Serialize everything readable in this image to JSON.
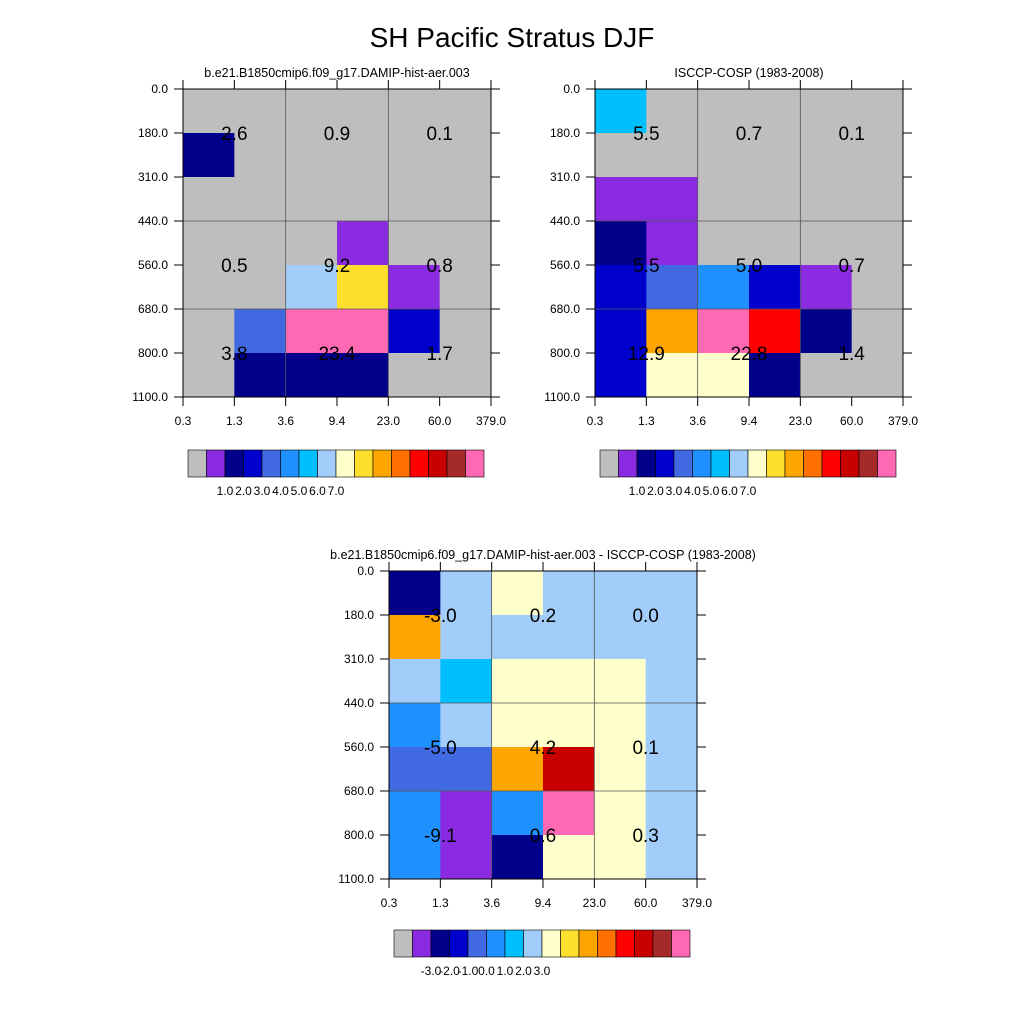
{
  "title": "SH Pacific Stratus DJF",
  "palette": {
    "gray": "#bebebe",
    "purple": "#8a2be2",
    "navy": "#00008b",
    "mblue": "#0000cd",
    "royal": "#4169e1",
    "dodger": "#1e90ff",
    "deepsky": "#00bfff",
    "lightblue": "#a2cdfa",
    "cream": "#ffffcc",
    "gold": "#ffdf2e",
    "orange": "#ffa500",
    "dorange": "#ff7000",
    "red": "#ff0000",
    "dred": "#c80000",
    "brown": "#a52a2a",
    "pink": "#ff69b4"
  },
  "chart_data": [
    {
      "type": "heatmap",
      "title": "b.e21.B1850cmip6.f09_g17.DAMIP-hist-aer.003",
      "x_ticks": [
        "0.3",
        "1.3",
        "3.6",
        "9.4",
        "23.0",
        "60.0",
        "379.0"
      ],
      "y_ticks": [
        "0.0",
        "180.0",
        "310.0",
        "440.0",
        "560.0",
        "680.0",
        "800.0",
        "1100.0"
      ],
      "cell_colors": [
        [
          "gray",
          "gray",
          "gray",
          "gray",
          "gray",
          "gray"
        ],
        [
          "navy",
          "gray",
          "gray",
          "gray",
          "gray",
          "gray"
        ],
        [
          "gray",
          "gray",
          "gray",
          "gray",
          "gray",
          "gray"
        ],
        [
          "gray",
          "gray",
          "gray",
          "purple",
          "gray",
          "gray"
        ],
        [
          "gray",
          "gray",
          "lightblue",
          "gold",
          "purple",
          "gray"
        ],
        [
          "gray",
          "royal",
          "pink",
          "pink",
          "mblue",
          "gray"
        ],
        [
          "gray",
          "navy",
          "navy",
          "navy",
          "gray",
          "gray"
        ]
      ],
      "box_values": [
        [
          "2.6",
          "0.9",
          "0.1"
        ],
        [
          "0.5",
          "9.2",
          "0.8"
        ],
        [
          "3.8",
          "23.4",
          "1.7"
        ]
      ],
      "colorbar": {
        "colors": [
          "gray",
          "purple",
          "navy",
          "mblue",
          "royal",
          "dodger",
          "deepsky",
          "lightblue",
          "cream",
          "gold",
          "orange",
          "dorange",
          "red",
          "dred",
          "brown",
          "pink"
        ],
        "labels": [
          "1.0",
          "2.0",
          "3.0",
          "4.0",
          "5.0",
          "6.0",
          "7.0"
        ]
      }
    },
    {
      "type": "heatmap",
      "title": "ISCCP-COSP (1983-2008)",
      "x_ticks": [
        "0.3",
        "1.3",
        "3.6",
        "9.4",
        "23.0",
        "60.0",
        "379.0"
      ],
      "y_ticks": [
        "0.0",
        "180.0",
        "310.0",
        "440.0",
        "560.0",
        "680.0",
        "800.0",
        "1100.0"
      ],
      "cell_colors": [
        [
          "deepsky",
          "gray",
          "gray",
          "gray",
          "gray",
          "gray"
        ],
        [
          "gray",
          "gray",
          "gray",
          "gray",
          "gray",
          "gray"
        ],
        [
          "purple",
          "purple",
          "gray",
          "gray",
          "gray",
          "gray"
        ],
        [
          "navy",
          "purple",
          "gray",
          "gray",
          "gray",
          "gray"
        ],
        [
          "mblue",
          "royal",
          "dodger",
          "mblue",
          "purple",
          "gray"
        ],
        [
          "mblue",
          "orange",
          "pink",
          "red",
          "navy",
          "gray"
        ],
        [
          "mblue",
          "cream",
          "cream",
          "navy",
          "gray",
          "gray"
        ]
      ],
      "box_values": [
        [
          "5.5",
          "0.7",
          "0.1"
        ],
        [
          "5.5",
          "5.0",
          "0.7"
        ],
        [
          "12.9",
          "22.8",
          "1.4"
        ]
      ],
      "colorbar": {
        "colors": [
          "gray",
          "purple",
          "navy",
          "mblue",
          "royal",
          "dodger",
          "deepsky",
          "lightblue",
          "cream",
          "gold",
          "orange",
          "dorange",
          "red",
          "dred",
          "brown",
          "pink"
        ],
        "labels": [
          "1.0",
          "2.0",
          "3.0",
          "4.0",
          "5.0",
          "6.0",
          "7.0"
        ]
      }
    },
    {
      "type": "heatmap",
      "title": "b.e21.B1850cmip6.f09_g17.DAMIP-hist-aer.003 - ISCCP-COSP (1983-2008)",
      "x_ticks": [
        "0.3",
        "1.3",
        "3.6",
        "9.4",
        "23.0",
        "60.0",
        "379.0"
      ],
      "y_ticks": [
        "0.0",
        "180.0",
        "310.0",
        "440.0",
        "560.0",
        "680.0",
        "800.0",
        "1100.0"
      ],
      "cell_colors": [
        [
          "navy",
          "lightblue",
          "cream",
          "lightblue",
          "lightblue",
          "lightblue"
        ],
        [
          "orange",
          "lightblue",
          "lightblue",
          "lightblue",
          "lightblue",
          "lightblue"
        ],
        [
          "lightblue",
          "deepsky",
          "cream",
          "cream",
          "cream",
          "lightblue"
        ],
        [
          "dodger",
          "lightblue",
          "cream",
          "cream",
          "cream",
          "lightblue"
        ],
        [
          "royal",
          "royal",
          "orange",
          "dred",
          "cream",
          "lightblue"
        ],
        [
          "dodger",
          "purple",
          "dodger",
          "pink",
          "cream",
          "lightblue"
        ],
        [
          "dodger",
          "purple",
          "navy",
          "cream",
          "cream",
          "lightblue"
        ]
      ],
      "box_values": [
        [
          "-3.0",
          "0.2",
          "0.0"
        ],
        [
          "-5.0",
          "4.2",
          "0.1"
        ],
        [
          "-9.1",
          "0.6",
          "0.3"
        ]
      ],
      "colorbar": {
        "colors": [
          "gray",
          "purple",
          "navy",
          "mblue",
          "royal",
          "dodger",
          "deepsky",
          "lightblue",
          "cream",
          "gold",
          "orange",
          "dorange",
          "red",
          "dred",
          "brown",
          "pink"
        ],
        "labels": [
          "-3.0",
          "-2.0",
          "-1.0",
          "0.0",
          "1.0",
          "2.0",
          "3.0"
        ]
      }
    }
  ]
}
